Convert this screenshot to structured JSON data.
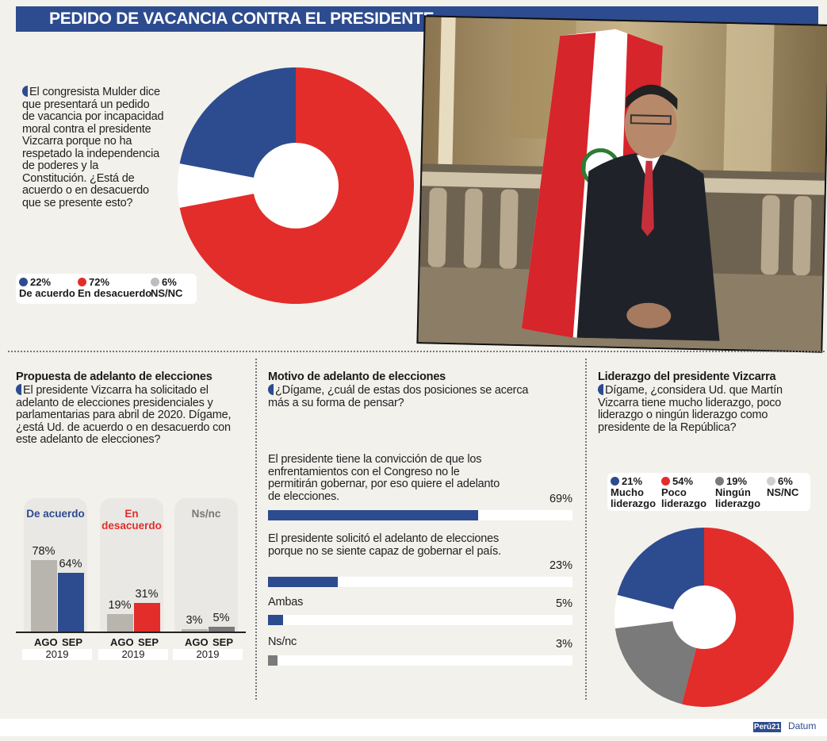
{
  "title": "PEDIDO DE VACANCIA CONTRA EL PRESIDENTE",
  "q1": {
    "text": "El congresista Mulder dice que presentará un pedido de vacancia por incapacidad moral contra el presidente Vizcarra porque no ha respetado la independencia de poderes y la Constitución. ¿Está de acuerdo o en desacuerdo que se presente esto?",
    "legend": [
      {
        "pct": "22%",
        "label": "De acuerdo",
        "color": "#2d4b8f"
      },
      {
        "pct": "72%",
        "label": "En desacuerdo",
        "color": "#e22d2a"
      },
      {
        "pct": "6%",
        "label": "NS/NC",
        "color": "#bdbdbd"
      }
    ]
  },
  "s1": {
    "title": "Propuesta de adelanto de elecciones",
    "text": "El presidente Vizcarra ha solicitado el adelanto de elecciones presidenciales y parlamentarias para abril de 2020. Dígame, ¿está Ud. de acuerdo o en desacuerdo con este adelanto de elecciones?",
    "axis": {
      "ago": "AGO",
      "sep": "SEP",
      "year": "2019"
    }
  },
  "s2": {
    "title": "Motivo de adelanto de elecciones",
    "text": "¿Dígame, ¿cuál de estas dos posiciones se acerca más a su forma de pensar?"
  },
  "s3": {
    "title": "Liderazgo del presidente Vizcarra",
    "text": "Dígame, ¿considera Ud. que Martín Vizcarra tiene mucho liderazgo, poco liderazgo o ningún liderazgo como presidente de la República?",
    "legend": [
      {
        "pct": "21%",
        "label1": "Mucho",
        "label2": "liderazgo",
        "color": "#2d4b8f"
      },
      {
        "pct": "54%",
        "label1": "Poco",
        "label2": "liderazgo",
        "color": "#e22d2a"
      },
      {
        "pct": "19%",
        "label1": "Ningún",
        "label2": "liderazgo",
        "color": "#7a7a7a"
      },
      {
        "pct": "6%",
        "label1": "NS/NC",
        "label2": "",
        "color": "#cfcfcf"
      }
    ]
  },
  "footer": {
    "logo1": "Perú21",
    "logo2": "Datum"
  },
  "chart_data": [
    {
      "type": "pie",
      "labels": [
        "De acuerdo",
        "En desacuerdo",
        "NS/NC"
      ],
      "values": [
        22,
        72,
        6
      ],
      "colors": [
        "#2d4b8f",
        "#e22d2a",
        "#ffffff"
      ],
      "start_value_order": [
        "En desacuerdo",
        "NS/NC",
        "De acuerdo"
      ]
    },
    {
      "type": "bar",
      "categories": [
        "De acuerdo",
        "En desacuerdo",
        "Ns/nc"
      ],
      "x": [
        "AGO",
        "SEP"
      ],
      "series": [
        {
          "name": "AGO",
          "values": [
            78,
            19,
            3
          ],
          "labels": [
            "78%",
            "19%",
            "3%"
          ]
        },
        {
          "name": "SEP",
          "values": [
            64,
            31,
            5
          ],
          "labels": [
            "64%",
            "31%",
            "5%"
          ]
        }
      ],
      "ylim": [
        0,
        100
      ]
    },
    {
      "type": "bar",
      "orientation": "horizontal",
      "categories": [
        "El presidente tiene la convicción de que los enfrentamientos con el Congreso no le permitirán gobernar, por eso quiere el adelanto de elecciones.",
        "El presidente solicitó el adelanto de elecciones porque no se siente capaz de gobernar el país.",
        "Ambas",
        "Ns/nc"
      ],
      "values": [
        69,
        23,
        5,
        3
      ],
      "labels": [
        "69%",
        "23%",
        "5%",
        "3%"
      ],
      "xlim": [
        0,
        100
      ]
    },
    {
      "type": "pie",
      "labels": [
        "Mucho liderazgo",
        "Poco liderazgo",
        "Ningún liderazgo",
        "NS/NC"
      ],
      "values": [
        21,
        54,
        19,
        6
      ],
      "colors": [
        "#2d4b8f",
        "#e22d2a",
        "#7a7a7a",
        "#ffffff"
      ]
    }
  ]
}
